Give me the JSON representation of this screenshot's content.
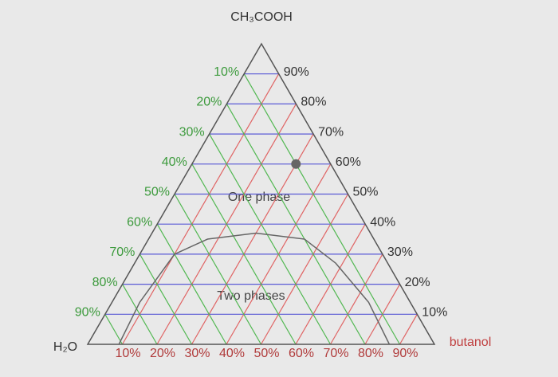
{
  "chart_data": {
    "type": "ternary",
    "vertex_top": "CH₃COOH",
    "vertex_left": "H₂O",
    "vertex_right": "butanol",
    "acetic_ticks": [
      {
        "value": 10,
        "label": "10%"
      },
      {
        "value": 20,
        "label": "20%"
      },
      {
        "value": 30,
        "label": "30%"
      },
      {
        "value": 40,
        "label": "40%"
      },
      {
        "value": 50,
        "label": "50%"
      },
      {
        "value": 60,
        "label": "60%"
      },
      {
        "value": 70,
        "label": "70%"
      },
      {
        "value": 80,
        "label": "80%"
      },
      {
        "value": 90,
        "label": "90%"
      }
    ],
    "water_ticks": [
      {
        "value": 10,
        "label": "10%"
      },
      {
        "value": 20,
        "label": "20%"
      },
      {
        "value": 30,
        "label": "30%"
      },
      {
        "value": 40,
        "label": "40%"
      },
      {
        "value": 50,
        "label": "50%"
      },
      {
        "value": 60,
        "label": "60%"
      },
      {
        "value": 70,
        "label": "70%"
      },
      {
        "value": 80,
        "label": "80%"
      },
      {
        "value": 90,
        "label": "90%"
      }
    ],
    "butanol_ticks": [
      {
        "value": 10,
        "label": "10%"
      },
      {
        "value": 20,
        "label": "20%"
      },
      {
        "value": 30,
        "label": "30%"
      },
      {
        "value": 40,
        "label": "40%"
      },
      {
        "value": 50,
        "label": "50%"
      },
      {
        "value": 60,
        "label": "60%"
      },
      {
        "value": 70,
        "label": "70%"
      },
      {
        "value": 80,
        "label": "80%"
      },
      {
        "value": 90,
        "label": "90%"
      }
    ],
    "acetic_color": "#5b5bd6",
    "water_color": "#52b852",
    "butanol_color": "#e06464",
    "curve": {
      "acetic": [
        0,
        14,
        30,
        35,
        37,
        35,
        27,
        14,
        0
      ],
      "butanol": [
        9,
        8,
        10,
        17,
        30,
        45,
        58,
        74,
        87
      ],
      "color": "#666666"
    },
    "point": {
      "acetic": 60,
      "butanol": 30,
      "color": "#666666"
    },
    "annotations": [
      "One phase",
      "Two phases"
    ]
  }
}
